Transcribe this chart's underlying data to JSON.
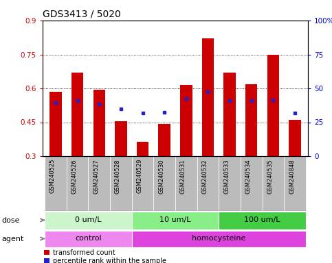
{
  "title": "GDS3413 / 5020",
  "samples": [
    "GSM240525",
    "GSM240526",
    "GSM240527",
    "GSM240528",
    "GSM240529",
    "GSM240530",
    "GSM240531",
    "GSM240532",
    "GSM240533",
    "GSM240534",
    "GSM240535",
    "GSM240848"
  ],
  "red_values": [
    0.585,
    0.67,
    0.593,
    0.455,
    0.365,
    0.443,
    0.615,
    0.82,
    0.67,
    0.618,
    0.748,
    0.462
  ],
  "blue_values": [
    0.535,
    0.545,
    0.53,
    0.51,
    0.49,
    0.495,
    0.555,
    0.585,
    0.545,
    0.545,
    0.55,
    0.49
  ],
  "ylim": [
    0.3,
    0.9
  ],
  "yticks": [
    0.3,
    0.45,
    0.6,
    0.75,
    0.9
  ],
  "ytick_labels": [
    "0.3",
    "0.45",
    "0.6",
    "0.75",
    "0.9"
  ],
  "right_yticks": [
    0,
    25,
    50,
    75,
    100
  ],
  "right_ytick_labels": [
    "0",
    "25",
    "50",
    "75",
    "100%"
  ],
  "bar_color": "#cc0000",
  "dot_color": "#2222cc",
  "bar_width": 0.55,
  "dose_groups": [
    {
      "label": "0 um/L",
      "start": 0,
      "end": 3,
      "color": "#ccf5cc"
    },
    {
      "label": "10 um/L",
      "start": 4,
      "end": 7,
      "color": "#88ee88"
    },
    {
      "label": "100 um/L",
      "start": 8,
      "end": 11,
      "color": "#44cc44"
    }
  ],
  "agent_groups": [
    {
      "label": "control",
      "start": 0,
      "end": 3,
      "color": "#ee88ee"
    },
    {
      "label": "homocysteine",
      "start": 4,
      "end": 11,
      "color": "#dd44dd"
    }
  ],
  "dose_label": "dose",
  "agent_label": "agent",
  "legend_red": "transformed count",
  "legend_blue": "percentile rank within the sample",
  "bg_color": "#ffffff",
  "tick_area_bg": "#bbbbbb",
  "title_fontsize": 10,
  "axis_fontsize": 7.5,
  "label_fontsize": 8,
  "sample_fontsize": 6,
  "legend_fontsize": 7
}
